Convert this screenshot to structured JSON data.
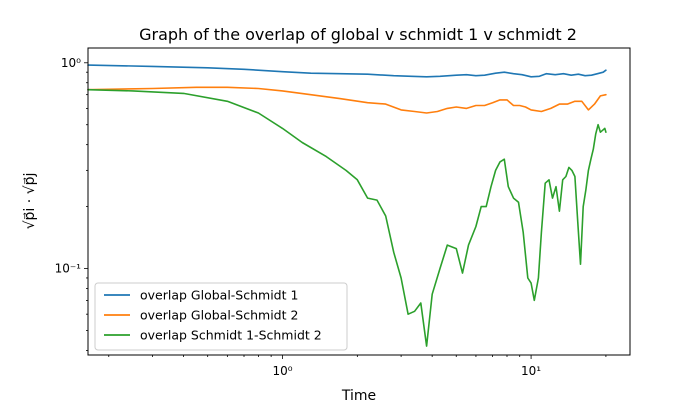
{
  "chart_data": {
    "type": "line",
    "title": "Graph of the overlap of global v schmidt 1 v schmidt 2",
    "xlabel": "Time",
    "ylabel": "√p⃗i · √p⃗j",
    "xscale": "log",
    "yscale": "log",
    "xlim": [
      0.165,
      25
    ],
    "ylim": [
      0.038,
      1.18
    ],
    "x_ticks": [
      {
        "value": 1,
        "label": "10⁰"
      },
      {
        "value": 10,
        "label": "10¹"
      }
    ],
    "y_ticks": [
      {
        "value": 0.1,
        "label": "10⁻¹"
      },
      {
        "value": 1,
        "label": "10⁰"
      }
    ],
    "grid": false,
    "legend_position": "lower-left",
    "series": [
      {
        "name": "overlap Global-Schmidt 1",
        "color": "#1f77b4",
        "x": [
          0.165,
          0.3,
          0.5,
          0.7,
          1.0,
          1.3,
          1.7,
          2.2,
          2.8,
          3.3,
          3.8,
          4.3,
          5.0,
          5.5,
          6.0,
          6.5,
          7.2,
          7.8,
          8.5,
          9.2,
          10.0,
          10.8,
          11.5,
          12.5,
          13.5,
          14.5,
          15.5,
          16.5,
          17.5,
          18.5,
          19.5,
          20.0
        ],
        "y": [
          0.975,
          0.96,
          0.945,
          0.93,
          0.905,
          0.89,
          0.885,
          0.88,
          0.865,
          0.86,
          0.855,
          0.86,
          0.87,
          0.875,
          0.865,
          0.87,
          0.89,
          0.9,
          0.885,
          0.875,
          0.855,
          0.86,
          0.885,
          0.875,
          0.885,
          0.87,
          0.88,
          0.865,
          0.87,
          0.885,
          0.9,
          0.92
        ]
      },
      {
        "name": "overlap Global-Schmidt 2",
        "color": "#ff7f0e",
        "x": [
          0.165,
          0.3,
          0.45,
          0.6,
          0.8,
          1.0,
          1.3,
          1.7,
          2.2,
          2.6,
          3.0,
          3.4,
          3.8,
          4.2,
          4.6,
          5.0,
          5.5,
          6.0,
          6.5,
          7.0,
          7.5,
          8.0,
          8.5,
          9.0,
          9.5,
          10.0,
          11.0,
          12.0,
          13.0,
          14.0,
          15.0,
          16.0,
          17.0,
          18.0,
          19.0,
          20.0
        ],
        "y": [
          0.74,
          0.75,
          0.76,
          0.76,
          0.75,
          0.73,
          0.7,
          0.67,
          0.64,
          0.63,
          0.59,
          0.58,
          0.57,
          0.58,
          0.6,
          0.61,
          0.6,
          0.62,
          0.62,
          0.64,
          0.66,
          0.66,
          0.62,
          0.62,
          0.61,
          0.59,
          0.58,
          0.6,
          0.63,
          0.63,
          0.65,
          0.65,
          0.59,
          0.63,
          0.69,
          0.7
        ]
      },
      {
        "name": "overlap Schmidt 1-Schmidt 2",
        "color": "#2ca02c",
        "x": [
          0.165,
          0.25,
          0.4,
          0.6,
          0.8,
          1.0,
          1.2,
          1.5,
          1.8,
          2.0,
          2.2,
          2.4,
          2.6,
          2.8,
          3.0,
          3.2,
          3.4,
          3.6,
          3.8,
          4.0,
          4.3,
          4.6,
          5.0,
          5.3,
          5.6,
          6.0,
          6.3,
          6.6,
          6.9,
          7.2,
          7.5,
          7.8,
          8.1,
          8.5,
          8.9,
          9.3,
          9.7,
          10.0,
          10.3,
          10.7,
          11.0,
          11.4,
          11.8,
          12.2,
          12.6,
          13.0,
          13.4,
          13.8,
          14.2,
          14.6,
          15.0,
          15.4,
          15.8,
          16.2,
          16.6,
          17.0,
          17.4,
          17.8,
          18.2,
          18.6,
          19.0,
          19.4,
          19.8,
          20.0
        ],
        "y": [
          0.74,
          0.73,
          0.71,
          0.65,
          0.57,
          0.48,
          0.41,
          0.35,
          0.3,
          0.27,
          0.22,
          0.215,
          0.18,
          0.12,
          0.09,
          0.06,
          0.062,
          0.068,
          0.042,
          0.075,
          0.1,
          0.13,
          0.125,
          0.095,
          0.13,
          0.16,
          0.2,
          0.2,
          0.25,
          0.3,
          0.33,
          0.34,
          0.25,
          0.22,
          0.21,
          0.15,
          0.09,
          0.085,
          0.07,
          0.09,
          0.15,
          0.26,
          0.27,
          0.22,
          0.25,
          0.19,
          0.27,
          0.28,
          0.31,
          0.3,
          0.28,
          0.17,
          0.105,
          0.2,
          0.24,
          0.3,
          0.34,
          0.38,
          0.45,
          0.5,
          0.46,
          0.47,
          0.48,
          0.46
        ]
      }
    ]
  }
}
